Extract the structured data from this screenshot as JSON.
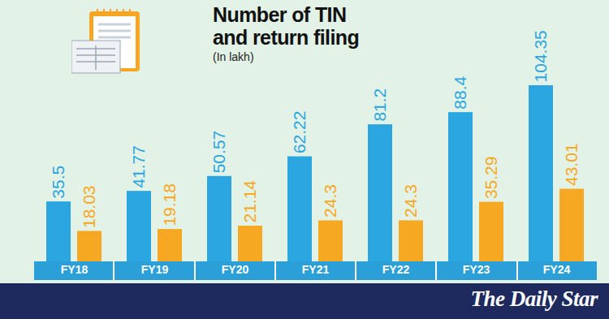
{
  "chart_data": {
    "type": "bar",
    "title": "Number of TIN and return filing",
    "subtitle": "(In lakh)",
    "source": "The Daily Star",
    "categories": [
      "FY18",
      "FY19",
      "FY20",
      "FY21",
      "FY22",
      "FY23",
      "FY24"
    ],
    "series": [
      {
        "color": "#2ba6e0",
        "values": [
          35.5,
          41.77,
          50.57,
          62.22,
          81.2,
          88.4,
          104.35
        ]
      },
      {
        "color": "#f7a823",
        "values": [
          18.03,
          19.18,
          21.14,
          24.3,
          24.3,
          35.29,
          43.01
        ]
      }
    ],
    "ylim": [
      0,
      150
    ],
    "yticks": [],
    "data_labels": true,
    "tick_labels": "x",
    "grid": false
  }
}
